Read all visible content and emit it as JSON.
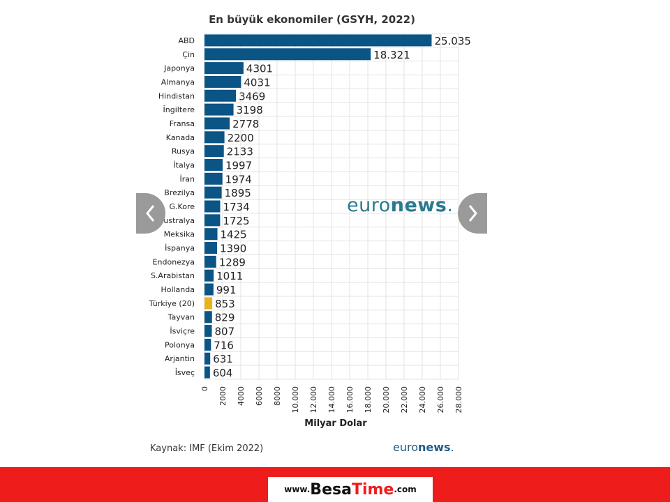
{
  "chart_data": {
    "type": "bar",
    "orientation": "horizontal",
    "title": "En büyük ekonomiler (GSYH, 2022)",
    "xlabel": "Milyar Dolar",
    "ylabel": "",
    "xlim": [
      0,
      28000
    ],
    "xticks": [
      "0",
      "2000",
      "4000",
      "6000",
      "8000",
      "10.000",
      "12.000",
      "14.000",
      "16.000",
      "18.000",
      "20.000",
      "22.000",
      "24.000",
      "26.000",
      "28.000"
    ],
    "grid": true,
    "categories": [
      "ABD",
      "Çin",
      "Japonya",
      "Almanya",
      "Hindistan",
      "İngiltere",
      "Fransa",
      "Kanada",
      "Rusya",
      "İtalya",
      "İran",
      "Brezilya",
      "G.Kore",
      "Avustralya",
      "Meksika",
      "İspanya",
      "Endonezya",
      "S.Arabistan",
      "Hollanda",
      "Türkiye (20)",
      "Tayvan",
      "İsviçre",
      "Polonya",
      "Arjantin",
      "İsveç"
    ],
    "values": [
      25035,
      18321,
      4301,
      4031,
      3469,
      3198,
      2778,
      2200,
      2133,
      1997,
      1974,
      1895,
      1734,
      1725,
      1425,
      1390,
      1289,
      1011,
      991,
      853,
      829,
      807,
      716,
      631,
      604
    ],
    "value_labels": [
      "25.035",
      "18.321",
      "4301",
      "4031",
      "3469",
      "3198",
      "2778",
      "2200",
      "2133",
      "1997",
      "1974",
      "1895",
      "1734",
      "1725",
      "1425",
      "1390",
      "1289",
      "1011",
      "991",
      "853",
      "829",
      "807",
      "716",
      "631",
      "604"
    ],
    "highlight_index": 19,
    "colors": {
      "bar": "#0b5486",
      "highlight": "#e8b31f",
      "grid": "#e3e3e3"
    }
  },
  "source": "Kaynak: IMF (Ekim 2022)",
  "watermark": {
    "part1": "euro",
    "part2": "news",
    "dot": "."
  },
  "brand_logo": {
    "part1": "euro",
    "part2": "news",
    "dot": "."
  },
  "nav": {
    "prev_icon": "chevron-left-icon",
    "next_icon": "chevron-right-icon"
  },
  "footer": {
    "www": "www.",
    "besa": "Besa",
    "time": "Time",
    "com": ".com",
    "band_color": "#ef1c1c"
  }
}
